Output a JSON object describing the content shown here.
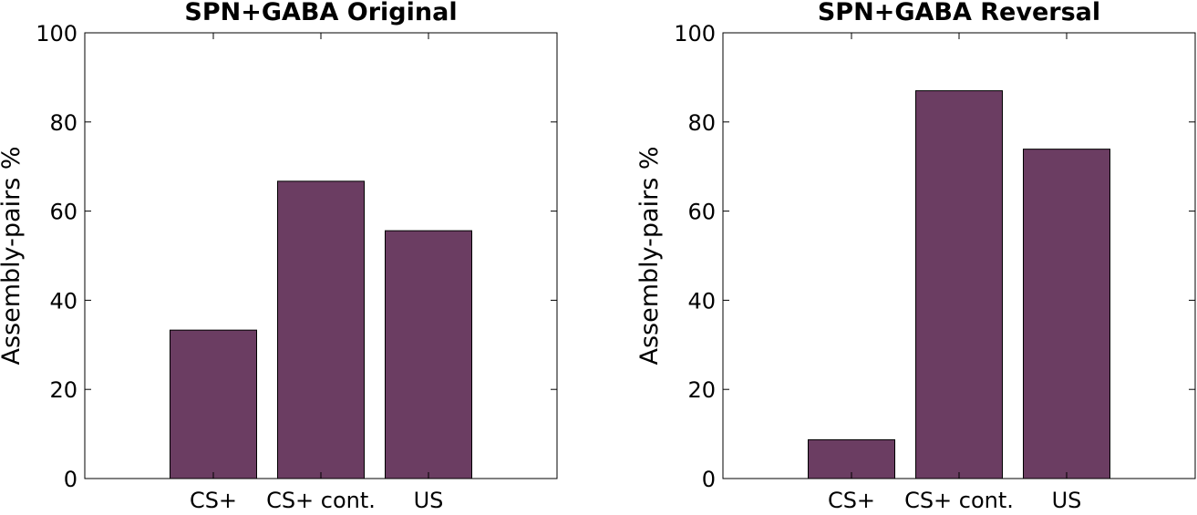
{
  "chart_data": [
    {
      "type": "bar",
      "title": "SPN+GABA Original",
      "xlabel": "",
      "ylabel": "Assembly-pairs %",
      "categories": [
        "CS+",
        "CS+ cont.",
        "US"
      ],
      "values": [
        33.3,
        66.7,
        55.6
      ],
      "ylim": [
        0,
        100
      ],
      "yticks": [
        "0",
        "20",
        "40",
        "60",
        "80",
        "100"
      ],
      "bar_color": "#6b3d62",
      "grid": false
    },
    {
      "type": "bar",
      "title": "SPN+GABA Reversal",
      "xlabel": "",
      "ylabel": "Assembly-pairs %",
      "categories": [
        "CS+",
        "CS+ cont.",
        "US"
      ],
      "values": [
        8.7,
        87.0,
        73.9
      ],
      "ylim": [
        0,
        100
      ],
      "yticks": [
        "0",
        "20",
        "40",
        "60",
        "80",
        "100"
      ],
      "bar_color": "#6b3d62",
      "grid": false
    }
  ]
}
